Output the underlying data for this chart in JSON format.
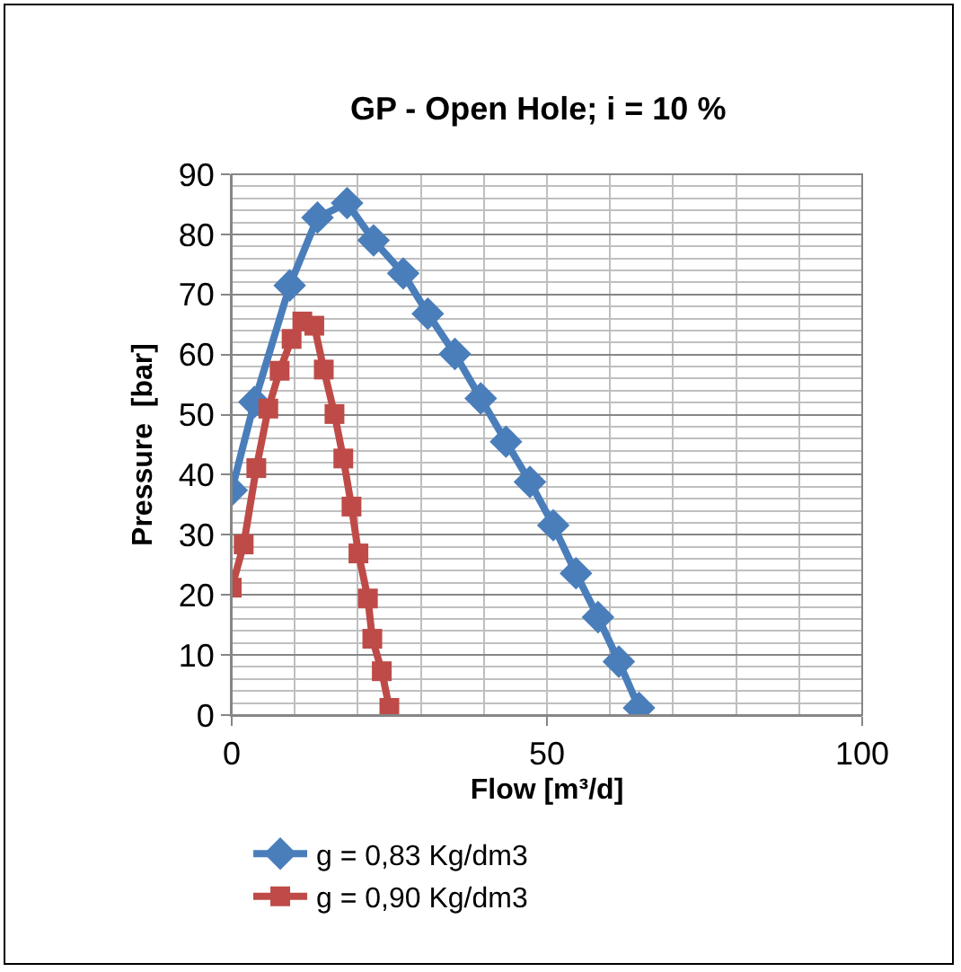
{
  "chart_data": {
    "type": "line",
    "title": "GP - Open Hole; i = 10 %",
    "xlabel": "Flow [m³/d]",
    "ylabel": "Pressure  [bar]",
    "xlim": [
      0,
      100
    ],
    "xticks": [
      0,
      50,
      100
    ],
    "ylim": [
      0,
      90
    ],
    "yticks": [
      0,
      10,
      20,
      30,
      40,
      50,
      60,
      70,
      80,
      90
    ],
    "grid": true,
    "legend": "bottom left",
    "series": [
      {
        "name": "g = 0,83 Kg/dm3",
        "color": "#4a7ebb",
        "marker": "diamond",
        "x": [
          0,
          3.6,
          9.2,
          13.6,
          18.3,
          22.5,
          27.2,
          31.1,
          35.4,
          39.5,
          43.5,
          47.3,
          51,
          54.6,
          58.1,
          61.4,
          64.6
        ],
        "values": [
          37.4,
          52.1,
          71.5,
          82.8,
          85.2,
          79,
          73.5,
          66.8,
          60.1,
          52.7,
          45.5,
          38.8,
          31.6,
          23.6,
          16.3,
          8.9,
          1.2
        ]
      },
      {
        "name": "g = 0,90 Kg/dm3",
        "color": "#be4b48",
        "marker": "square",
        "x": [
          0,
          1.9,
          3.9,
          5.8,
          7.6,
          9.5,
          11.2,
          13.1,
          14.6,
          16.3,
          17.7,
          19,
          20.1,
          21.6,
          22.3,
          23.8,
          25
        ],
        "values": [
          21.2,
          28.4,
          41.1,
          51,
          57.3,
          62.6,
          65.5,
          64.8,
          57.5,
          50.1,
          42.7,
          34.7,
          26.9,
          19.4,
          12.7,
          7.3,
          1.2
        ]
      }
    ]
  }
}
